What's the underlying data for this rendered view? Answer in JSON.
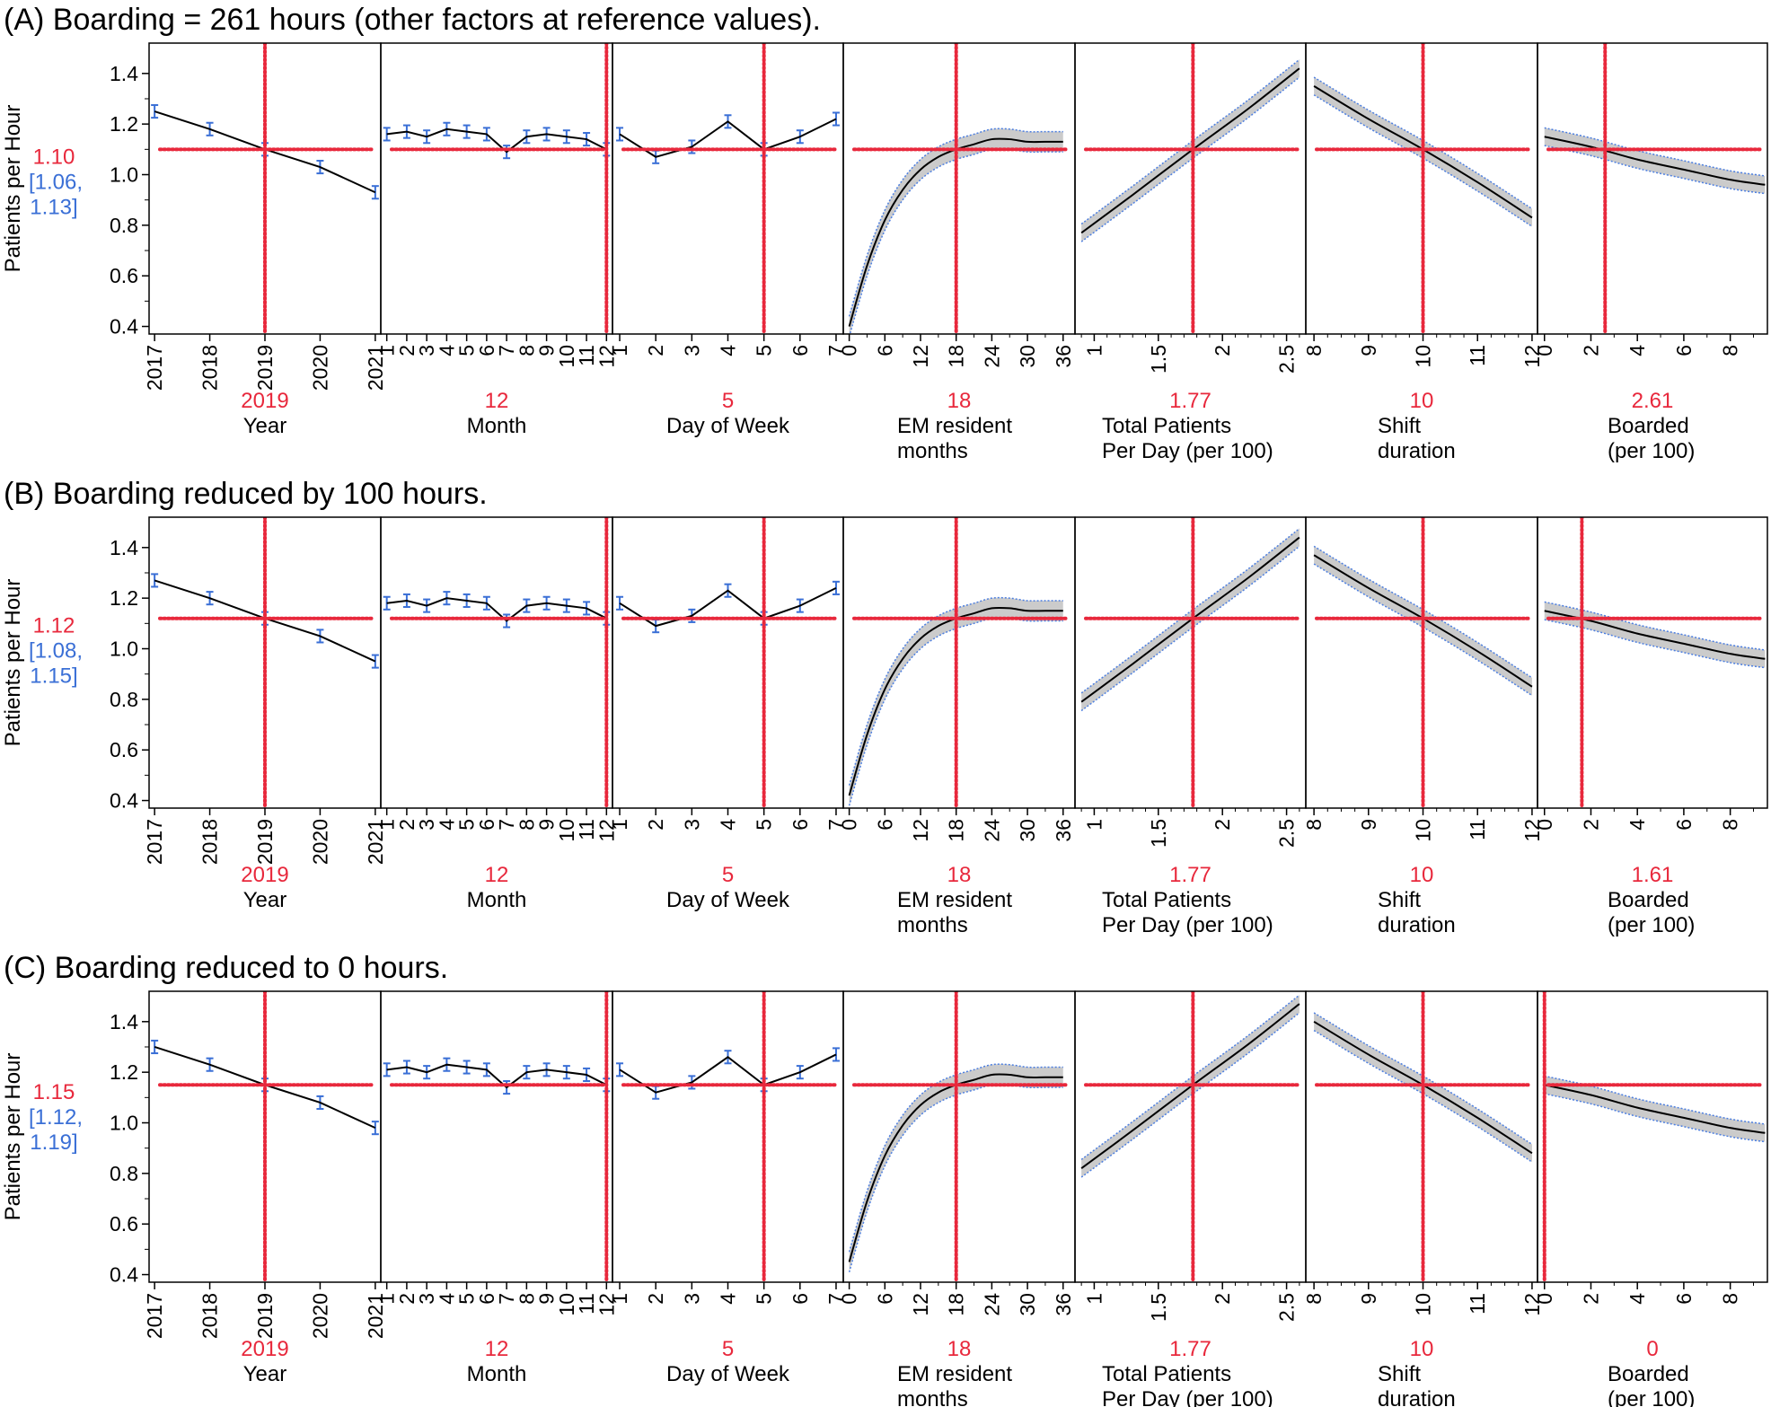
{
  "colors": {
    "ref_line": "#e8283c",
    "error_bar": "#3a6fd6",
    "band_edge": "#4d7fe0",
    "band_fill": "#b9b9b9",
    "curve": "#000000",
    "border": "#000000"
  },
  "y_axis": {
    "label": "Patients per Hour",
    "ylim": [
      0.37,
      1.52
    ],
    "ticks": [
      "1.4",
      "1.2",
      "1.0",
      "0.8",
      "0.6",
      "0.4"
    ],
    "tick_values": [
      1.4,
      1.2,
      1.0,
      0.8,
      0.6,
      0.4
    ]
  },
  "factors": [
    {
      "key": "year",
      "label_lines": [
        "Year"
      ],
      "ticks": [
        "2017",
        "2018",
        "2019",
        "2020",
        "2021"
      ],
      "tick_values": [
        2017,
        2018,
        2019,
        2020,
        2021
      ],
      "xlim": [
        2016.9,
        2021.1
      ],
      "ref_label": "2019",
      "ref_x": 2019
    },
    {
      "key": "month",
      "label_lines": [
        "Month"
      ],
      "ticks": [
        "1",
        "2",
        "3",
        "4",
        "5",
        "6",
        "7",
        "8",
        "9",
        "10",
        "11",
        "12"
      ],
      "tick_values": [
        1,
        2,
        3,
        4,
        5,
        6,
        7,
        8,
        9,
        10,
        11,
        12
      ],
      "xlim": [
        0.7,
        12.3
      ],
      "ref_label": "12",
      "ref_x": 12
    },
    {
      "key": "dow",
      "label_lines": [
        "Day of Week"
      ],
      "ticks": [
        "1",
        "2",
        "3",
        "4",
        "5",
        "6",
        "7"
      ],
      "tick_values": [
        1,
        2,
        3,
        4,
        5,
        6,
        7
      ],
      "xlim": [
        0.8,
        7.2
      ],
      "ref_label": "5",
      "ref_x": 5
    },
    {
      "key": "em",
      "label_lines": [
        "EM resident",
        "months"
      ],
      "ticks": [
        "0",
        "6",
        "12",
        "18",
        "24",
        "30",
        "36"
      ],
      "tick_values": [
        0,
        6,
        12,
        18,
        24,
        30,
        36
      ],
      "xlim": [
        -1,
        38
      ],
      "ref_label": "18",
      "ref_x": 18
    },
    {
      "key": "total",
      "label_lines": [
        "Total Patients",
        "Per Day (per 100)"
      ],
      "ticks": [
        "1",
        "1.5",
        "2",
        "2.5"
      ],
      "tick_values": [
        1,
        1.5,
        2,
        2.5
      ],
      "xlim": [
        0.85,
        2.65
      ],
      "ref_label": "1.77",
      "ref_x": 1.77
    },
    {
      "key": "shift",
      "label_lines": [
        "Shift",
        "duration"
      ],
      "ticks": [
        "8",
        "9",
        "10",
        "11",
        "12"
      ],
      "tick_values": [
        8,
        9,
        10,
        11,
        12
      ],
      "xlim": [
        7.85,
        12.1
      ],
      "ref_label": "10",
      "ref_x": 10
    },
    {
      "key": "boarded",
      "label_lines": [
        "Boarded",
        "(per 100)"
      ],
      "ticks": [
        "0",
        "2",
        "4",
        "6",
        "8"
      ],
      "tick_values": [
        0,
        2,
        4,
        6,
        8
      ],
      "xlim": [
        -0.3,
        9.6
      ]
    }
  ],
  "chart_data": [
    {
      "type": "line",
      "title": "(A) Boarding = 261 hours (other factors at reference values).",
      "prediction": "1.10",
      "ci": [
        "[1.06,",
        "1.13]"
      ],
      "ref_y": 1.1,
      "boarded_ref_label": "2.61",
      "boarded_ref_x": 2.61,
      "series": {
        "year": {
          "x": [
            2017,
            2018,
            2019,
            2020,
            2021
          ],
          "y": [
            1.25,
            1.18,
            1.1,
            1.03,
            0.93
          ]
        },
        "month": {
          "x": [
            1,
            2,
            3,
            4,
            5,
            6,
            7,
            8,
            9,
            10,
            11,
            12
          ],
          "y": [
            1.16,
            1.17,
            1.15,
            1.18,
            1.17,
            1.16,
            1.09,
            1.15,
            1.16,
            1.15,
            1.14,
            1.1
          ]
        },
        "dow": {
          "x": [
            1,
            2,
            3,
            4,
            5,
            6,
            7
          ],
          "y": [
            1.16,
            1.07,
            1.11,
            1.21,
            1.1,
            1.15,
            1.22
          ]
        },
        "em": {
          "x": [
            0,
            3,
            6,
            9,
            12,
            15,
            18,
            21,
            24,
            27,
            30,
            33,
            36
          ],
          "y": [
            0.4,
            0.64,
            0.82,
            0.94,
            1.02,
            1.07,
            1.1,
            1.12,
            1.14,
            1.14,
            1.13,
            1.13,
            1.13
          ]
        },
        "total": {
          "x": [
            0.9,
            1.3,
            1.77,
            2.2,
            2.6
          ],
          "y": [
            0.77,
            0.92,
            1.1,
            1.26,
            1.42
          ]
        },
        "shift": {
          "x": [
            8,
            9,
            10,
            11,
            12
          ],
          "y": [
            1.35,
            1.22,
            1.1,
            0.97,
            0.83
          ]
        },
        "boarded": {
          "x": [
            0,
            2,
            4,
            6,
            8,
            9.5
          ],
          "y": [
            1.15,
            1.11,
            1.06,
            1.02,
            0.98,
            0.96
          ]
        }
      }
    },
    {
      "type": "line",
      "title": "(B) Boarding reduced by 100 hours.",
      "prediction": "1.12",
      "ci": [
        "[1.08,",
        "1.15]"
      ],
      "ref_y": 1.12,
      "boarded_ref_label": "1.61",
      "boarded_ref_x": 1.61,
      "series": {
        "year": {
          "x": [
            2017,
            2018,
            2019,
            2020,
            2021
          ],
          "y": [
            1.27,
            1.2,
            1.12,
            1.05,
            0.95
          ]
        },
        "month": {
          "x": [
            1,
            2,
            3,
            4,
            5,
            6,
            7,
            8,
            9,
            10,
            11,
            12
          ],
          "y": [
            1.18,
            1.19,
            1.17,
            1.2,
            1.19,
            1.18,
            1.11,
            1.17,
            1.18,
            1.17,
            1.16,
            1.12
          ]
        },
        "dow": {
          "x": [
            1,
            2,
            3,
            4,
            5,
            6,
            7
          ],
          "y": [
            1.18,
            1.09,
            1.13,
            1.23,
            1.12,
            1.17,
            1.24
          ]
        },
        "em": {
          "x": [
            0,
            3,
            6,
            9,
            12,
            15,
            18,
            21,
            24,
            27,
            30,
            33,
            36
          ],
          "y": [
            0.42,
            0.66,
            0.84,
            0.96,
            1.04,
            1.09,
            1.12,
            1.14,
            1.16,
            1.16,
            1.15,
            1.15,
            1.15
          ]
        },
        "total": {
          "x": [
            0.9,
            1.3,
            1.77,
            2.2,
            2.6
          ],
          "y": [
            0.79,
            0.94,
            1.12,
            1.28,
            1.44
          ]
        },
        "shift": {
          "x": [
            8,
            9,
            10,
            11,
            12
          ],
          "y": [
            1.37,
            1.24,
            1.12,
            0.99,
            0.85
          ]
        },
        "boarded": {
          "x": [
            0,
            2,
            4,
            6,
            8,
            9.5
          ],
          "y": [
            1.15,
            1.11,
            1.06,
            1.02,
            0.98,
            0.96
          ]
        }
      }
    },
    {
      "type": "line",
      "title": "(C) Boarding reduced to 0 hours.",
      "prediction": "1.15",
      "ci": [
        "[1.12,",
        "1.19]"
      ],
      "ref_y": 1.15,
      "boarded_ref_label": "0",
      "boarded_ref_x": 0,
      "series": {
        "year": {
          "x": [
            2017,
            2018,
            2019,
            2020,
            2021
          ],
          "y": [
            1.3,
            1.23,
            1.15,
            1.08,
            0.98
          ]
        },
        "month": {
          "x": [
            1,
            2,
            3,
            4,
            5,
            6,
            7,
            8,
            9,
            10,
            11,
            12
          ],
          "y": [
            1.21,
            1.22,
            1.2,
            1.23,
            1.22,
            1.21,
            1.14,
            1.2,
            1.21,
            1.2,
            1.19,
            1.15
          ]
        },
        "dow": {
          "x": [
            1,
            2,
            3,
            4,
            5,
            6,
            7
          ],
          "y": [
            1.21,
            1.12,
            1.16,
            1.26,
            1.15,
            1.2,
            1.27
          ]
        },
        "em": {
          "x": [
            0,
            3,
            6,
            9,
            12,
            15,
            18,
            21,
            24,
            27,
            30,
            33,
            36
          ],
          "y": [
            0.45,
            0.69,
            0.87,
            0.99,
            1.07,
            1.12,
            1.15,
            1.17,
            1.19,
            1.19,
            1.18,
            1.18,
            1.18
          ]
        },
        "total": {
          "x": [
            0.9,
            1.3,
            1.77,
            2.2,
            2.6
          ],
          "y": [
            0.82,
            0.97,
            1.15,
            1.31,
            1.47
          ]
        },
        "shift": {
          "x": [
            8,
            9,
            10,
            11,
            12
          ],
          "y": [
            1.4,
            1.27,
            1.15,
            1.02,
            0.88
          ]
        },
        "boarded": {
          "x": [
            0,
            2,
            4,
            6,
            8,
            9.5
          ],
          "y": [
            1.15,
            1.11,
            1.06,
            1.02,
            0.98,
            0.96
          ]
        }
      }
    }
  ]
}
